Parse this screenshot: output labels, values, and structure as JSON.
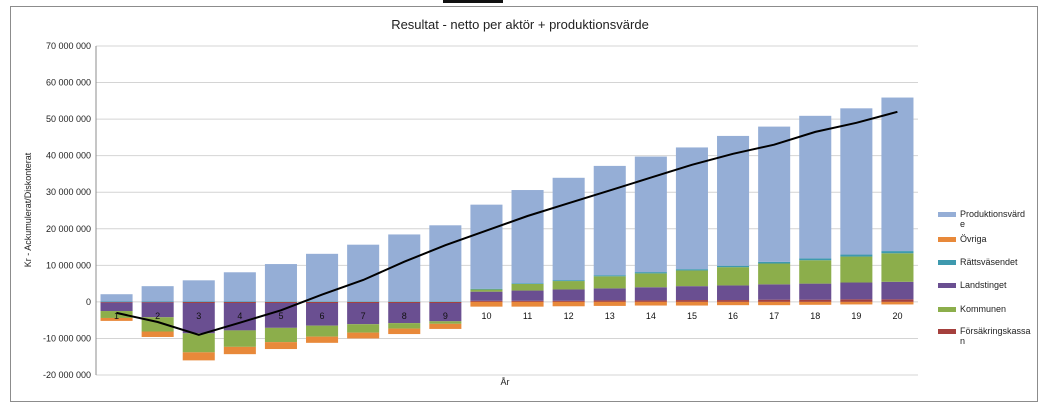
{
  "chart_data": {
    "type": "bar",
    "stacked": true,
    "title": "Resultat - netto per aktör + produktionsvärde",
    "xlabel": "År",
    "ylabel": "Kr - Ackumulerat/Diskonterat",
    "ylim": [
      -20000000,
      70000000
    ],
    "yticks": [
      {
        "v": 70000000,
        "label": "70 000 000"
      },
      {
        "v": 60000000,
        "label": "60 000 000"
      },
      {
        "v": 50000000,
        "label": "50 000 000"
      },
      {
        "v": 40000000,
        "label": "40 000 000"
      },
      {
        "v": 30000000,
        "label": "30 000 000"
      },
      {
        "v": 20000000,
        "label": "20 000 000"
      },
      {
        "v": 10000000,
        "label": "10 000 000"
      },
      {
        "v": 0,
        "label": "0"
      },
      {
        "v": -10000000,
        "label": "-10 000 000"
      },
      {
        "v": -20000000,
        "label": "-20 000 000"
      }
    ],
    "categories": [
      "1",
      "2",
      "3",
      "4",
      "5",
      "6",
      "7",
      "8",
      "9",
      "10",
      "11",
      "12",
      "13",
      "14",
      "15",
      "16",
      "17",
      "18",
      "19",
      "20"
    ],
    "grid": true,
    "legend_position": "right",
    "series": [
      {
        "name": "Försäkringskassan",
        "color": "#a5403d",
        "values": [
          -200000,
          -200000,
          -300000,
          -300000,
          -300000,
          -300000,
          -300000,
          -300000,
          -300000,
          300000,
          300000,
          300000,
          400000,
          400000,
          500000,
          500000,
          600000,
          600000,
          700000,
          700000
        ]
      },
      {
        "name": "Landstinget",
        "color": "#6a4f91",
        "values": [
          -2300000,
          -4000000,
          -8300000,
          -7500000,
          -6800000,
          -6200000,
          -5800000,
          -5500000,
          -5000000,
          2500000,
          2800000,
          3100000,
          3300000,
          3600000,
          3800000,
          4000000,
          4200000,
          4400000,
          4600000,
          4800000
        ]
      },
      {
        "name": "Kommunen",
        "color": "#8cae4b",
        "values": [
          -1900000,
          -3900000,
          -5200000,
          -4500000,
          -3900000,
          -3000000,
          -2300000,
          -1500000,
          -700000,
          600000,
          1800000,
          2300000,
          3300000,
          3800000,
          4300000,
          5000000,
          5700000,
          6400000,
          7100000,
          7800000
        ]
      },
      {
        "name": "Rättsväsendet",
        "color": "#3e99ae",
        "values": [
          100000,
          100000,
          100000,
          100000,
          150000,
          150000,
          150000,
          150000,
          150000,
          200000,
          200000,
          250000,
          300000,
          350000,
          350000,
          400000,
          450000,
          500000,
          550000,
          600000
        ]
      },
      {
        "name": "Övriga",
        "color": "#e8893a",
        "values": [
          -800000,
          -1500000,
          -2200000,
          -2000000,
          -1900000,
          -1700000,
          -1600000,
          -1500000,
          -1400000,
          -1300000,
          -1300000,
          -1200000,
          -1100000,
          -1000000,
          -1000000,
          -900000,
          -900000,
          -800000,
          -700000,
          -700000
        ]
      },
      {
        "name": "Produktionsvärde",
        "color": "#95aed6",
        "values": [
          2000000,
          4200000,
          5800000,
          8000000,
          10200000,
          13000000,
          15500000,
          18300000,
          20800000,
          23000000,
          25500000,
          28000000,
          29900000,
          31600000,
          33300000,
          35500000,
          37000000,
          39000000,
          40000000,
          42000000
        ]
      }
    ],
    "line": {
      "name": "Totalt",
      "color": "#000000",
      "values": [
        -3000000,
        -5500000,
        -9000000,
        -5700000,
        -2300000,
        2000000,
        6000000,
        11000000,
        15500000,
        19500000,
        23500000,
        27000000,
        30500000,
        34000000,
        37500000,
        40500000,
        43000000,
        46500000,
        49000000,
        52000000
      ]
    },
    "legend": [
      {
        "label": "Produktionsvärd\ne",
        "color": "#95aed6"
      },
      {
        "label": "Övriga",
        "color": "#e8893a"
      },
      {
        "label": "Rättsväsendet",
        "color": "#3e99ae"
      },
      {
        "label": "Landstinget",
        "color": "#6a4f91"
      },
      {
        "label": "Kommunen",
        "color": "#8cae4b"
      },
      {
        "label": "Försäkringskassa\nn",
        "color": "#a5403d"
      }
    ]
  }
}
